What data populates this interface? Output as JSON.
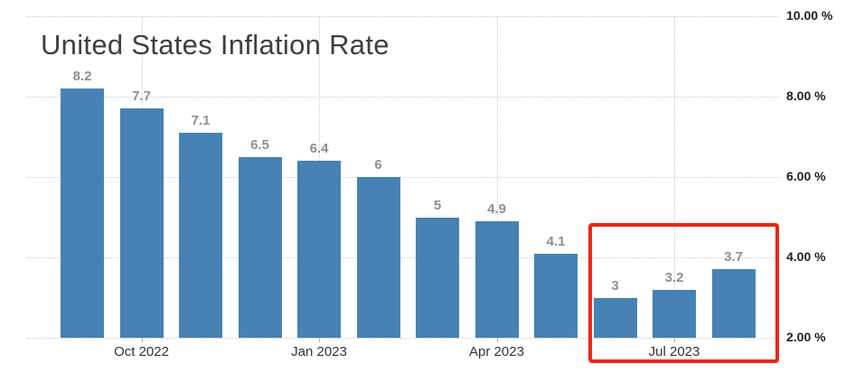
{
  "chart_data": {
    "type": "bar",
    "title": "United States Inflation Rate",
    "values": [
      8.2,
      7.7,
      7.1,
      6.5,
      6.4,
      6,
      5,
      4.9,
      4.1,
      3,
      3.2,
      3.7
    ],
    "bar_labels": [
      "8.2",
      "7.7",
      "7.1",
      "6.5",
      "6.4",
      "6",
      "5",
      "4.9",
      "4.1",
      "3",
      "3.2",
      "3.7"
    ],
    "x_ticks": [
      {
        "label": "Oct 2022",
        "bar_index": 1
      },
      {
        "label": "Jan 2023",
        "bar_index": 4
      },
      {
        "label": "Apr 2023",
        "bar_index": 7
      },
      {
        "label": "Jul 2023",
        "bar_index": 10
      }
    ],
    "y_ticks": [
      {
        "label": "10.00 %",
        "value": 10
      },
      {
        "label": "8.00 %",
        "value": 8
      },
      {
        "label": "6.00 %",
        "value": 6
      },
      {
        "label": "4.00 %",
        "value": 4
      },
      {
        "label": "2.00 %",
        "value": 2
      }
    ],
    "ylim": [
      2,
      10
    ],
    "xlabel": "",
    "ylabel": "",
    "grid": "dotted",
    "legend": "none",
    "colors": {
      "bar": "#4682b4",
      "value_label": "#8f8f8f",
      "x_axis_label": "#333333",
      "y_axis_label": "#222222",
      "title": "#3f3f3f",
      "gridline": "#cccccc",
      "tick_mark": "#aaaaaa",
      "highlight_box": "#ee2518"
    },
    "highlight": {
      "shape": "red-rectangle",
      "bar_indices": [
        9,
        10,
        11
      ]
    }
  }
}
